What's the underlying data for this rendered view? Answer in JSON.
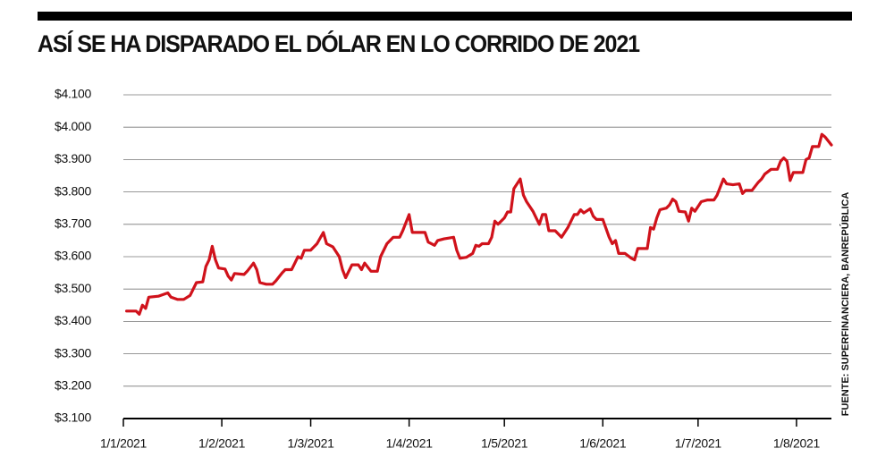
{
  "chart_data": {
    "type": "line",
    "title": "ASÍ SE HA DISPARADO EL DÓLAR EN LO CORRIDO DE 2021",
    "source": "FUENTE: SUPERFINANCIERA, BANREPÚBLICA",
    "color": "#d0121b",
    "grid": true,
    "xlim": [
      "1/1/2021",
      "12/8/2021"
    ],
    "xticks": [
      "1/1/2021",
      "1/2/2021",
      "1/3/2021",
      "1/4/2021",
      "1/5/2021",
      "1/6/2021",
      "1/7/2021",
      "1/8/2021"
    ],
    "ylim": [
      3100,
      4100
    ],
    "yticks": [
      {
        "value": 3100,
        "label": "$3.100"
      },
      {
        "value": 3200,
        "label": "$3.200"
      },
      {
        "value": 3300,
        "label": "$3.300"
      },
      {
        "value": 3400,
        "label": "$3.400"
      },
      {
        "value": 3500,
        "label": "$3.500"
      },
      {
        "value": 3600,
        "label": "$3.600"
      },
      {
        "value": 3700,
        "label": "$3.700"
      },
      {
        "value": 3800,
        "label": "$3.800"
      },
      {
        "value": 3900,
        "label": "$3.900"
      },
      {
        "value": 4000,
        "label": "$4.000"
      },
      {
        "value": 4100,
        "label": "$4.100"
      }
    ],
    "x": [
      "2/1/2021",
      "5/1/2021",
      "6/1/2021",
      "7/1/2021",
      "8/1/2021",
      "9/1/2021",
      "12/1/2021",
      "15/1/2021",
      "16/1/2021",
      "18/1/2021",
      "20/1/2021",
      "22/1/2021",
      "24/1/2021",
      "26/1/2021",
      "27/1/2021",
      "28/1/2021",
      "29/1/2021",
      "30/1/2021",
      "31/1/2021",
      "2/2/2021",
      "3/2/2021",
      "4/2/2021",
      "5/2/2021",
      "8/2/2021",
      "9/2/2021",
      "11/2/2021",
      "12/2/2021",
      "13/2/2021",
      "15/2/2021",
      "17/2/2021",
      "18/2/2021",
      "20/2/2021",
      "21/2/2021",
      "23/2/2021",
      "24/2/2021",
      "25/2/2021",
      "26/2/2021",
      "27/2/2021",
      "1/3/2021",
      "3/3/2021",
      "5/3/2021",
      "6/3/2021",
      "8/3/2021",
      "10/3/2021",
      "11/3/2021",
      "12/3/2021",
      "14/3/2021",
      "16/3/2021",
      "17/3/2021",
      "18/3/2021",
      "20/3/2021",
      "22/3/2021",
      "23/3/2021",
      "25/3/2021",
      "27/3/2021",
      "29/3/2021",
      "30/3/2021",
      "1/4/2021",
      "2/4/2021",
      "5/4/2021",
      "6/4/2021",
      "7/4/2021",
      "9/4/2021",
      "10/4/2021",
      "12/4/2021",
      "15/4/2021",
      "16/4/2021",
      "17/4/2021",
      "19/4/2021",
      "21/4/2021",
      "22/4/2021",
      "23/4/2021",
      "24/4/2021",
      "26/4/2021",
      "27/4/2021",
      "28/4/2021",
      "29/4/2021",
      "1/5/2021",
      "2/5/2021",
      "3/5/2021",
      "4/5/2021",
      "6/5/2021",
      "7/5/2021",
      "8/5/2021",
      "10/5/2021",
      "11/5/2021",
      "12/5/2021",
      "13/5/2021",
      "14/5/2021",
      "15/5/2021",
      "17/5/2021",
      "19/5/2021",
      "21/5/2021",
      "23/5/2021",
      "24/5/2021",
      "25/5/2021",
      "26/5/2021",
      "28/5/2021",
      "29/5/2021",
      "30/5/2021",
      "1/6/2021",
      "3/6/2021",
      "4/6/2021",
      "5/6/2021",
      "6/6/2021",
      "8/6/2021",
      "10/6/2021",
      "11/6/2021",
      "12/6/2021",
      "15/6/2021",
      "16/6/2021",
      "17/6/2021",
      "18/6/2021",
      "19/6/2021",
      "21/6/2021",
      "22/6/2021",
      "23/6/2021",
      "24/6/2021",
      "25/6/2021",
      "27/6/2021",
      "28/6/2021",
      "29/6/2021",
      "30/6/2021",
      "2/7/2021",
      "4/7/2021",
      "6/7/2021",
      "7/7/2021",
      "9/7/2021",
      "10/7/2021",
      "12/7/2021",
      "14/7/2021",
      "15/7/2021",
      "16/7/2021",
      "18/7/2021",
      "20/7/2021",
      "21/7/2021",
      "22/7/2021",
      "24/7/2021",
      "26/7/2021",
      "27/7/2021",
      "28/7/2021",
      "29/7/2021",
      "30/7/2021",
      "31/7/2021",
      "3/8/2021",
      "4/8/2021",
      "5/8/2021",
      "6/8/2021",
      "8/8/2021",
      "9/8/2021",
      "10/8/2021",
      "12/8/2021"
    ],
    "values": [
      3432,
      3432,
      3422,
      3450,
      3440,
      3475,
      3478,
      3488,
      3475,
      3468,
      3468,
      3480,
      3520,
      3522,
      3570,
      3590,
      3632,
      3590,
      3565,
      3562,
      3540,
      3528,
      3548,
      3545,
      3555,
      3580,
      3560,
      3520,
      3515,
      3515,
      3525,
      3550,
      3560,
      3560,
      3580,
      3600,
      3595,
      3620,
      3620,
      3640,
      3675,
      3640,
      3630,
      3600,
      3560,
      3535,
      3575,
      3575,
      3560,
      3580,
      3555,
      3555,
      3600,
      3640,
      3660,
      3660,
      3680,
      3730,
      3675,
      3675,
      3675,
      3645,
      3635,
      3650,
      3655,
      3660,
      3620,
      3595,
      3598,
      3610,
      3635,
      3632,
      3640,
      3640,
      3660,
      3710,
      3700,
      3720,
      3738,
      3738,
      3810,
      3840,
      3790,
      3770,
      3740,
      3720,
      3700,
      3730,
      3730,
      3680,
      3680,
      3660,
      3690,
      3730,
      3730,
      3745,
      3735,
      3748,
      3725,
      3715,
      3715,
      3660,
      3640,
      3650,
      3610,
      3610,
      3595,
      3590,
      3625,
      3625,
      3690,
      3685,
      3720,
      3745,
      3750,
      3760,
      3778,
      3770,
      3740,
      3738,
      3710,
      3750,
      3740,
      3770,
      3775,
      3775,
      3790,
      3840,
      3825,
      3822,
      3825,
      3795,
      3805,
      3805,
      3830,
      3840,
      3855,
      3870,
      3870,
      3895,
      3905,
      3895,
      3835,
      3860,
      3860,
      3900,
      3905,
      3940,
      3940,
      3978,
      3970,
      3945
    ]
  }
}
